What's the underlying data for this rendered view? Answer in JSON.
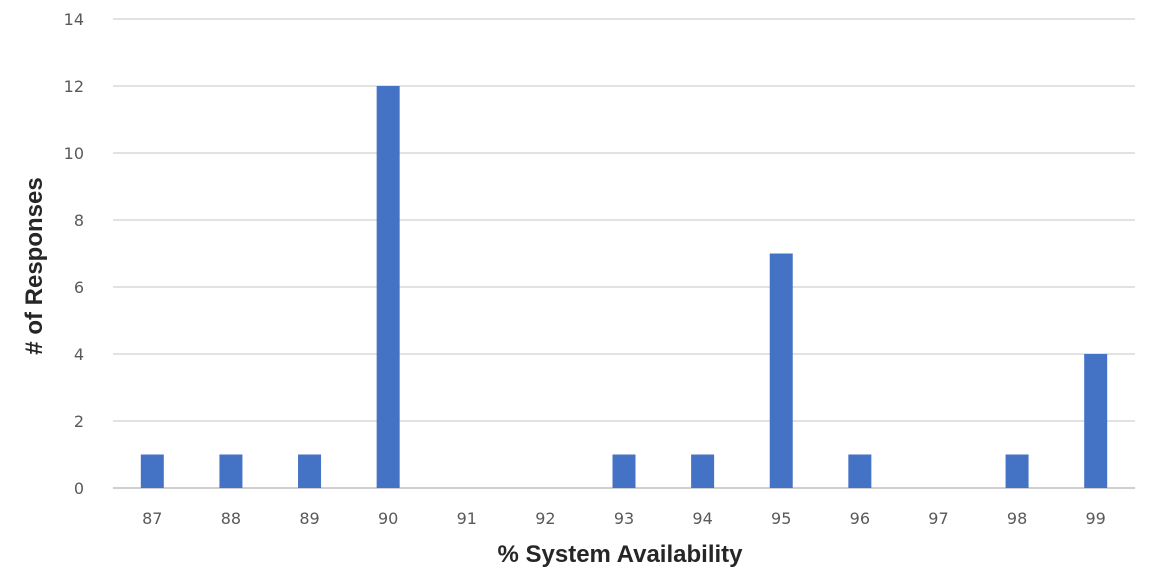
{
  "chart_data": {
    "type": "bar",
    "title": "",
    "xlabel": "% System Availability",
    "ylabel": "# of Responses",
    "categories": [
      "87",
      "88",
      "89",
      "90",
      "91",
      "92",
      "93",
      "94",
      "95",
      "96",
      "97",
      "98",
      "99"
    ],
    "values": [
      1,
      1,
      1,
      12,
      0,
      0,
      1,
      1,
      7,
      1,
      0,
      1,
      4
    ],
    "ylim": [
      0,
      14
    ],
    "yticks": [
      0,
      2,
      4,
      6,
      8,
      10,
      12,
      14
    ],
    "grid": true,
    "legend": "none",
    "bar_color": "#4472c4"
  }
}
